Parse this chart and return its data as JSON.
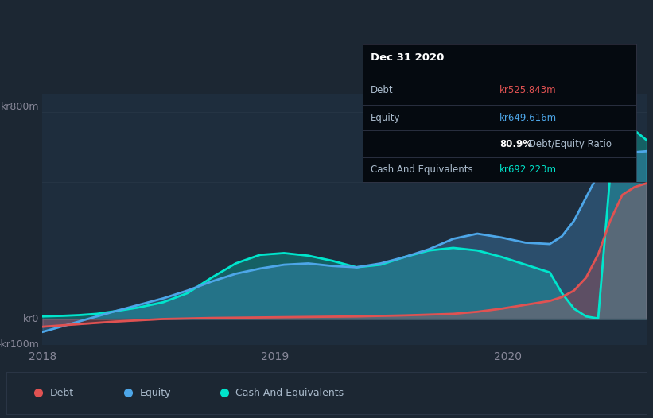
{
  "background_color": "#1c2733",
  "plot_bg_color": "#1e2d3d",
  "grid_color": "#263545",
  "ylabel_top": "kr800m",
  "ylabel_zero": "kr0",
  "ylabel_neg": "-kr100m",
  "xlabels": [
    "2018",
    "2019",
    "2020"
  ],
  "xtick_positions": [
    0.0,
    0.385,
    0.77
  ],
  "ylim": [
    -100,
    870
  ],
  "debt_color": "#e05252",
  "equity_color": "#4da6e8",
  "cash_color": "#00e5cc",
  "fill_alpha": 0.28,
  "legend_labels": [
    "Debt",
    "Equity",
    "Cash And Equivalents"
  ],
  "tooltip": {
    "title": "Dec 31 2020",
    "debt_label": "Debt",
    "debt_value": "kr525.843m",
    "equity_label": "Equity",
    "equity_value": "kr649.616m",
    "ratio_bold": "80.9%",
    "ratio_rest": " Debt/Equity Ratio",
    "cash_label": "Cash And Equivalents",
    "cash_value": "kr692.223m"
  },
  "x": [
    0.0,
    0.03,
    0.06,
    0.09,
    0.12,
    0.16,
    0.2,
    0.24,
    0.28,
    0.32,
    0.36,
    0.4,
    0.44,
    0.48,
    0.52,
    0.56,
    0.6,
    0.64,
    0.68,
    0.72,
    0.76,
    0.8,
    0.84,
    0.86,
    0.88,
    0.9,
    0.92,
    0.94,
    0.96,
    0.98,
    1.0
  ],
  "debt": [
    -30,
    -25,
    -20,
    -15,
    -10,
    -5,
    0,
    2,
    4,
    5,
    6,
    7,
    8,
    9,
    10,
    12,
    14,
    17,
    20,
    28,
    40,
    55,
    70,
    85,
    110,
    160,
    250,
    380,
    480,
    510,
    525
  ],
  "equity": [
    -50,
    -30,
    -10,
    10,
    30,
    55,
    80,
    110,
    145,
    175,
    195,
    210,
    215,
    205,
    200,
    215,
    240,
    270,
    310,
    330,
    315,
    295,
    290,
    320,
    380,
    470,
    560,
    610,
    640,
    645,
    649
  ],
  "cash": [
    10,
    12,
    15,
    20,
    30,
    45,
    65,
    100,
    160,
    215,
    248,
    255,
    245,
    225,
    200,
    210,
    240,
    265,
    275,
    265,
    240,
    210,
    180,
    100,
    40,
    10,
    2,
    560,
    700,
    730,
    692
  ]
}
